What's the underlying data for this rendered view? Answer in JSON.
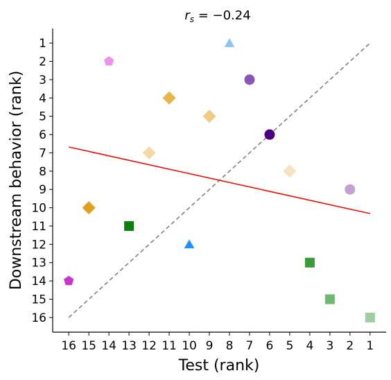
{
  "chart_data": {
    "type": "scatter",
    "title_var": "r",
    "title_sub": "s",
    "title_rest": " = −0.24",
    "xlabel": "Test (rank)",
    "ylabel": "Downstream behavior (rank)",
    "xlim": [
      16.8,
      0.2
    ],
    "ylim": [
      16.8,
      0.2
    ],
    "x_inverted": true,
    "y_inverted": true,
    "xticks": [
      16,
      15,
      14,
      13,
      12,
      11,
      10,
      9,
      8,
      7,
      6,
      5,
      4,
      3,
      2,
      1
    ],
    "yticks": [
      1,
      2,
      3,
      4,
      5,
      6,
      7,
      8,
      9,
      10,
      11,
      12,
      13,
      14,
      15,
      16
    ],
    "grid": false,
    "points": [
      {
        "x": 8,
        "y": 1,
        "shape": "triangle",
        "color": "#8ec4f5"
      },
      {
        "x": 14,
        "y": 2,
        "shape": "pentagon",
        "color": "#ee92ee"
      },
      {
        "x": 7,
        "y": 3,
        "shape": "circle",
        "color": "#8a55b3"
      },
      {
        "x": 11,
        "y": 4,
        "shape": "diamond",
        "color": "#e8b54a"
      },
      {
        "x": 9,
        "y": 5,
        "shape": "diamond",
        "color": "#f0cb84"
      },
      {
        "x": 6,
        "y": 6,
        "shape": "circle",
        "color": "#4b0080"
      },
      {
        "x": 12,
        "y": 7,
        "shape": "diamond",
        "color": "#f5d9a7"
      },
      {
        "x": 5,
        "y": 8,
        "shape": "diamond",
        "color": "#f7e2c2"
      },
      {
        "x": 2,
        "y": 9,
        "shape": "circle",
        "color": "#c3a2d3"
      },
      {
        "x": 15,
        "y": 10,
        "shape": "diamond",
        "color": "#dfa020"
      },
      {
        "x": 13,
        "y": 11,
        "shape": "square",
        "color": "#0b800b"
      },
      {
        "x": 10,
        "y": 12,
        "shape": "triangle",
        "color": "#1e90ff"
      },
      {
        "x": 4,
        "y": 13,
        "shape": "square",
        "color": "#3a9a3a"
      },
      {
        "x": 16,
        "y": 14,
        "shape": "pentagon",
        "color": "#cc33cc"
      },
      {
        "x": 3,
        "y": 15,
        "shape": "square",
        "color": "#6db96d"
      },
      {
        "x": 1,
        "y": 16,
        "shape": "square",
        "color": "#9ecf9e"
      }
    ],
    "identity_line": {
      "from": [
        16,
        16
      ],
      "to": [
        1,
        1
      ],
      "color": "#808080",
      "style": "dashed"
    },
    "fit_line": {
      "from": [
        16,
        6.68
      ],
      "to": [
        1,
        10.32
      ],
      "color": "#e8120c"
    }
  }
}
